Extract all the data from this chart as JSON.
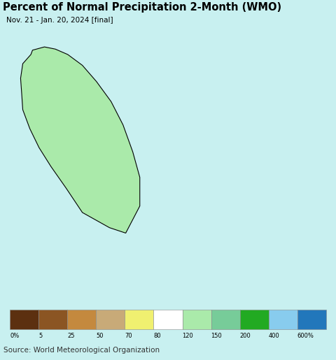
{
  "title": "Percent of Normal Precipitation 2-Month (WMO)",
  "subtitle": "Nov. 21 - Jan. 20, 2024 [final]",
  "source": "Source: World Meteorological Organization",
  "map_bg_color": "#c8f0f0",
  "legend_bg_color": "#e8e8e8",
  "title_bg_color": "#ffffff",
  "map_extent": [
    79.3,
    85.5,
    5.6,
    10.1
  ],
  "colorbar_colors": [
    "#5c3010",
    "#8b5523",
    "#c4893e",
    "#c8aa78",
    "#f0f070",
    "#ffffff",
    "#aaeaaa",
    "#77cc99",
    "#22aa22",
    "#88ccee",
    "#2277bb"
  ],
  "colorbar_labels": [
    "0%",
    "5",
    "25",
    "50",
    "70",
    "80",
    "120",
    "150",
    "200",
    "400",
    "600%"
  ],
  "title_fontsize": 10.5,
  "subtitle_fontsize": 7.5,
  "source_fontsize": 7.5,
  "district_colors": {
    "Northern": "#ffffff",
    "North Central": "#aaeaaa",
    "North Western": "#22aa22",
    "Central": "#aaeaaa",
    "Eastern": "#aaeaaa",
    "Western": "#22aa22",
    "Sabaragamuwa": "#aaeaaa",
    "Southern": "#aaeaaa",
    "Uva": "#aaeaaa"
  }
}
